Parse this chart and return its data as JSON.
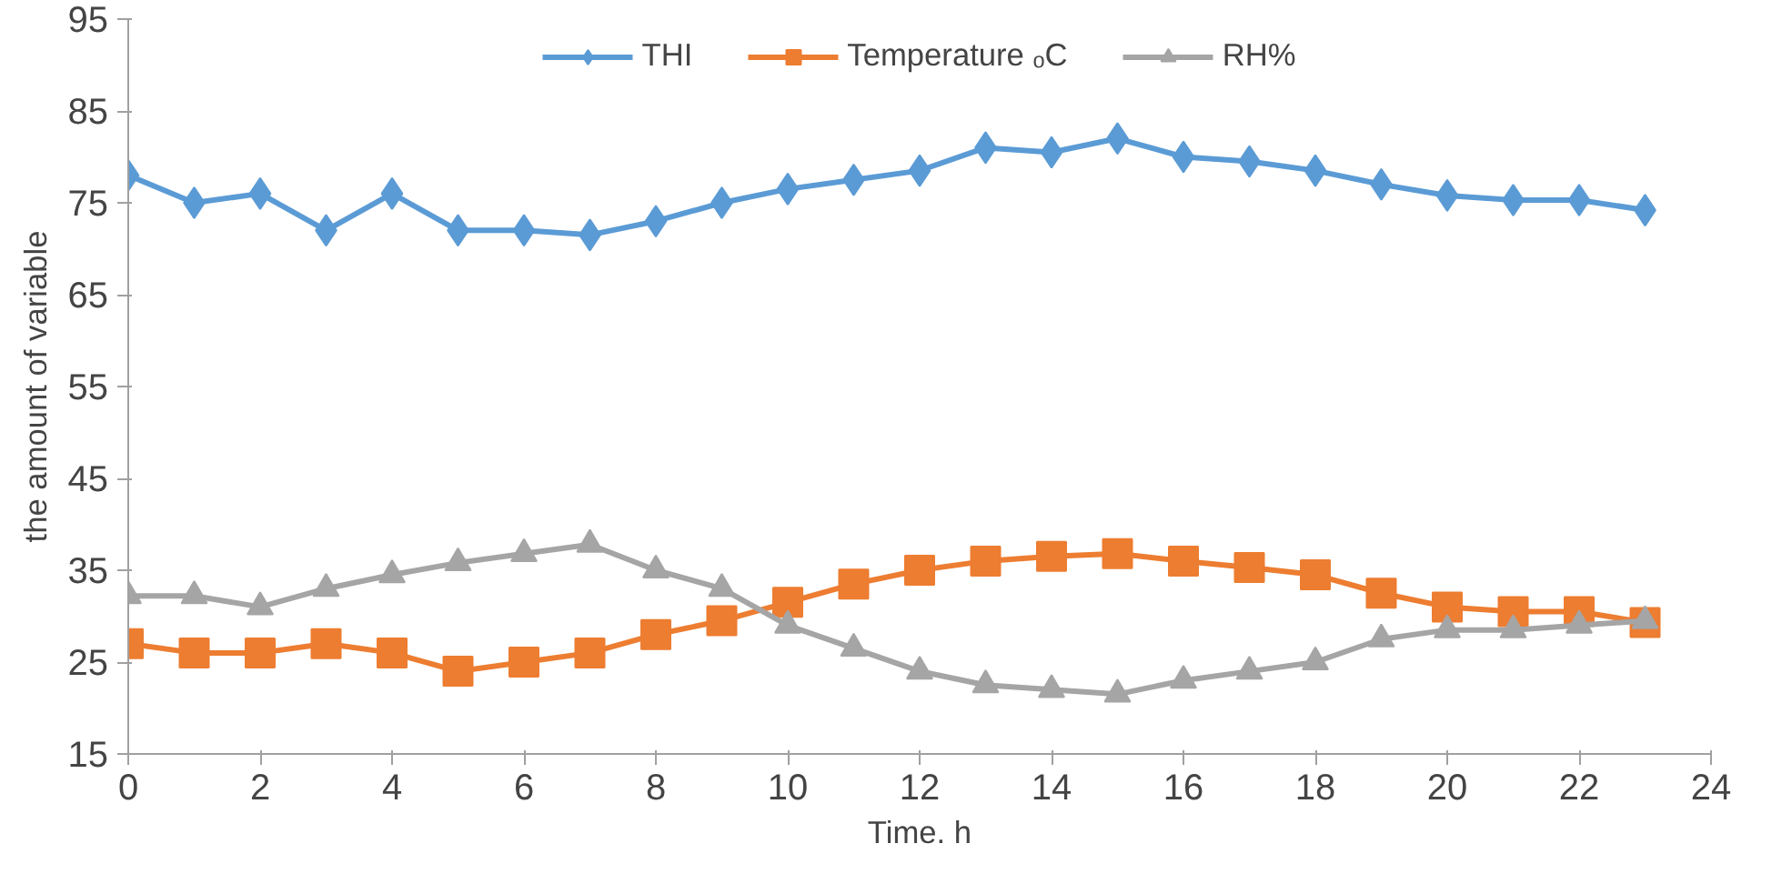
{
  "chart_data": {
    "type": "line",
    "xlabel": "Time. h",
    "ylabel": "the amount of variable",
    "x": [
      0,
      1,
      2,
      3,
      4,
      5,
      6,
      7,
      8,
      9,
      10,
      11,
      12,
      13,
      14,
      15,
      16,
      17,
      18,
      19,
      20,
      21,
      22,
      23
    ],
    "xlim": [
      0,
      24
    ],
    "xticks": [
      0,
      2,
      4,
      6,
      8,
      10,
      12,
      14,
      16,
      18,
      20,
      22,
      24
    ],
    "ylim": [
      15,
      95
    ],
    "yticks": [
      15,
      25,
      35,
      45,
      55,
      65,
      75,
      85,
      95
    ],
    "grid": false,
    "legend": "top",
    "series": [
      {
        "name": "THI",
        "color": "#5b9bd5",
        "marker": "diamond",
        "values": [
          78,
          75,
          76,
          72,
          76,
          72,
          72,
          71.5,
          73,
          75,
          76.5,
          77.5,
          78.5,
          81,
          80.5,
          82,
          80,
          79.5,
          78.5,
          77,
          75.8,
          75.3,
          75.3,
          74.2
        ]
      },
      {
        "name": "Temperature ₒC",
        "color": "#ed7d31",
        "marker": "square",
        "values": [
          27,
          26,
          26,
          27,
          26,
          24,
          25,
          26,
          28,
          29.5,
          31.5,
          33.5,
          35,
          36,
          36.5,
          36.8,
          36,
          35.3,
          34.5,
          32.5,
          31,
          30.5,
          30.5,
          29.3
        ]
      },
      {
        "name": "RH%",
        "color": "#a5a5a5",
        "marker": "triangle",
        "values": [
          32.2,
          32.2,
          31,
          33,
          34.5,
          35.8,
          36.8,
          37.8,
          35,
          33,
          29,
          26.5,
          24,
          22.5,
          22,
          21.5,
          23,
          24,
          25,
          27.5,
          28.5,
          28.5,
          29,
          29.5
        ]
      }
    ]
  }
}
